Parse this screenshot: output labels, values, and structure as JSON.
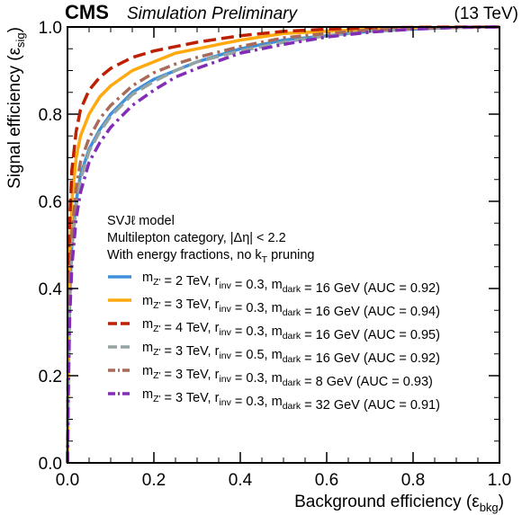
{
  "header": {
    "experiment": "CMS",
    "status": "Simulation Preliminary",
    "energy": "(13 TeV)"
  },
  "chart_data": {
    "type": "line",
    "xlabel": "Background efficiency (ε_bkg)",
    "ylabel": "Signal efficiency (ε_sig)",
    "xlim": [
      0,
      1
    ],
    "ylim": [
      0,
      1
    ],
    "x_ticks": [
      "0.0",
      "0.2",
      "0.4",
      "0.6",
      "0.8",
      "1.0"
    ],
    "y_ticks": [
      "0.0",
      "0.2",
      "0.4",
      "0.6",
      "0.8",
      "1.0"
    ],
    "grid": false,
    "legend_placement": "center-left",
    "legend_header": [
      "SVJℓ model",
      "Multilepton category, |Δη| < 2.2",
      "With energy fractions, no kT pruning"
    ],
    "series": [
      {
        "name": "mZ' = 2 TeV, rinv = 0.3, mdark = 16 GeV (AUC = 0.92)",
        "color": "#3f90da",
        "dash": "solid",
        "x": [
          0,
          0.002,
          0.005,
          0.01,
          0.02,
          0.03,
          0.05,
          0.075,
          0.1,
          0.15,
          0.2,
          0.25,
          0.3,
          0.4,
          0.5,
          0.6,
          0.7,
          0.8,
          0.9,
          1.0
        ],
        "y": [
          0,
          0.2,
          0.38,
          0.5,
          0.6,
          0.66,
          0.72,
          0.765,
          0.8,
          0.85,
          0.88,
          0.9,
          0.92,
          0.95,
          0.97,
          0.98,
          0.99,
          0.995,
          0.999,
          1.0
        ]
      },
      {
        "name": "mZ' = 3 TeV, rinv = 0.3, mdark = 16 GeV (AUC = 0.94)",
        "color": "#ffa90e",
        "dash": "solid",
        "x": [
          0,
          0.002,
          0.005,
          0.01,
          0.02,
          0.03,
          0.05,
          0.075,
          0.1,
          0.15,
          0.2,
          0.25,
          0.3,
          0.4,
          0.5,
          0.6,
          0.7,
          0.8,
          0.9,
          1.0
        ],
        "y": [
          0,
          0.28,
          0.48,
          0.6,
          0.7,
          0.75,
          0.8,
          0.84,
          0.865,
          0.9,
          0.92,
          0.94,
          0.95,
          0.97,
          0.985,
          0.99,
          0.995,
          0.998,
          0.999,
          1.0
        ]
      },
      {
        "name": "mZ' = 4 TeV, rinv = 0.3, mdark = 16 GeV (AUC = 0.95)",
        "color": "#bd1f01",
        "dash": "dashed",
        "x": [
          0,
          0.002,
          0.005,
          0.01,
          0.02,
          0.03,
          0.05,
          0.075,
          0.1,
          0.15,
          0.2,
          0.25,
          0.3,
          0.4,
          0.5,
          0.6,
          0.7,
          0.8,
          0.9,
          1.0
        ],
        "y": [
          0,
          0.35,
          0.55,
          0.67,
          0.76,
          0.81,
          0.855,
          0.885,
          0.905,
          0.93,
          0.945,
          0.955,
          0.965,
          0.98,
          0.99,
          0.995,
          0.998,
          0.999,
          1.0,
          1.0
        ]
      },
      {
        "name": "mZ' = 3 TeV, rinv = 0.5, mdark = 16 GeV (AUC = 0.92)",
        "color": "#94a4a2",
        "dash": "dashed",
        "x": [
          0,
          0.002,
          0.005,
          0.01,
          0.02,
          0.03,
          0.05,
          0.075,
          0.1,
          0.15,
          0.2,
          0.25,
          0.3,
          0.4,
          0.5,
          0.6,
          0.7,
          0.8,
          0.9,
          1.0
        ],
        "y": [
          0,
          0.19,
          0.36,
          0.49,
          0.59,
          0.65,
          0.715,
          0.76,
          0.795,
          0.845,
          0.875,
          0.9,
          0.92,
          0.945,
          0.965,
          0.98,
          0.99,
          0.996,
          0.999,
          1.0
        ]
      },
      {
        "name": "mZ' = 3 TeV, rinv = 0.3, mdark = 8 GeV (AUC = 0.93)",
        "color": "#a96b59",
        "dash": "dashdot",
        "x": [
          0,
          0.002,
          0.005,
          0.01,
          0.02,
          0.03,
          0.05,
          0.075,
          0.1,
          0.15,
          0.2,
          0.25,
          0.3,
          0.4,
          0.5,
          0.6,
          0.7,
          0.8,
          0.9,
          1.0
        ],
        "y": [
          0,
          0.22,
          0.4,
          0.52,
          0.63,
          0.69,
          0.745,
          0.79,
          0.82,
          0.865,
          0.895,
          0.915,
          0.93,
          0.955,
          0.975,
          0.985,
          0.993,
          0.997,
          0.999,
          1.0
        ]
      },
      {
        "name": "mZ' = 3 TeV, rinv = 0.3, mdark = 32 GeV (AUC = 0.91)",
        "color": "#832db6",
        "dash": "dashdot",
        "x": [
          0,
          0.002,
          0.005,
          0.01,
          0.02,
          0.03,
          0.05,
          0.075,
          0.1,
          0.15,
          0.2,
          0.25,
          0.3,
          0.4,
          0.5,
          0.6,
          0.7,
          0.8,
          0.9,
          1.0
        ],
        "y": [
          0,
          0.17,
          0.33,
          0.45,
          0.56,
          0.62,
          0.69,
          0.735,
          0.77,
          0.82,
          0.855,
          0.885,
          0.905,
          0.94,
          0.96,
          0.977,
          0.988,
          0.995,
          0.999,
          1.0
        ]
      }
    ]
  }
}
